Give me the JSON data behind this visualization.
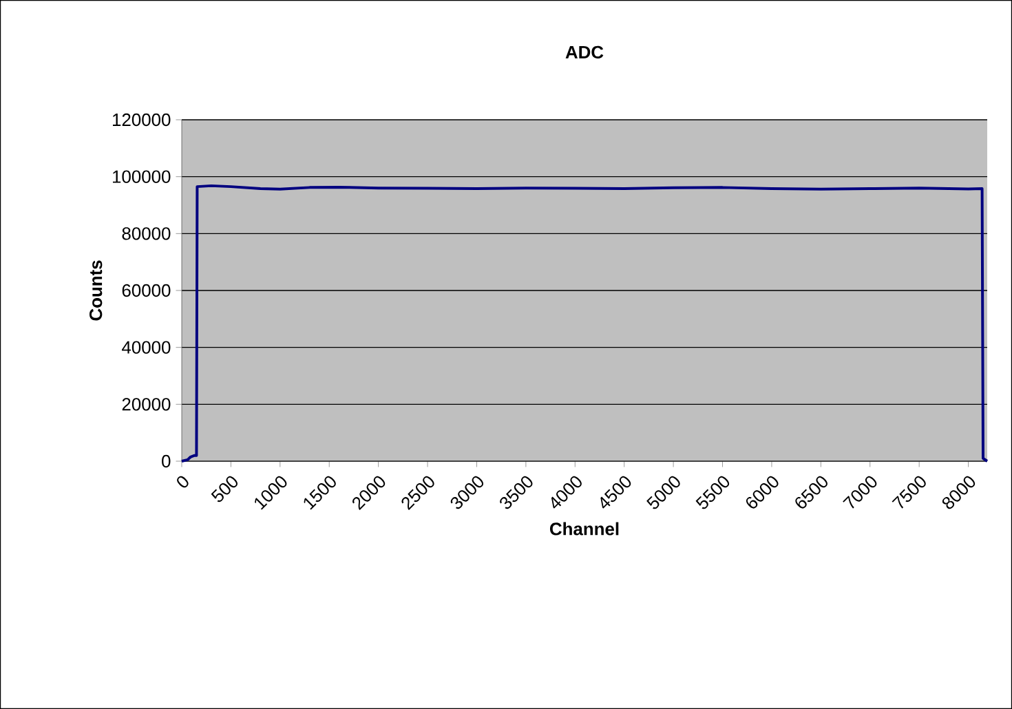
{
  "chart_data": {
    "type": "line",
    "title": "ADC",
    "xlabel": "Channel",
    "ylabel": "Counts",
    "xlim": [
      0,
      8192
    ],
    "xticks": [
      0,
      500,
      1000,
      1500,
      2000,
      2500,
      3000,
      3500,
      4000,
      4500,
      5000,
      5500,
      6000,
      6500,
      7000,
      7500,
      8000
    ],
    "ylim": [
      0,
      120000
    ],
    "yticks": [
      0,
      20000,
      40000,
      60000,
      80000,
      100000,
      120000
    ],
    "grid": "y",
    "marker": "none",
    "line_style": "solid",
    "series": [
      {
        "color": "#000080",
        "x": [
          0,
          60,
          90,
          130,
          150,
          157,
          300,
          500,
          800,
          1000,
          1300,
          1600,
          2000,
          2500,
          3000,
          3500,
          4000,
          4500,
          5000,
          5500,
          6000,
          6500,
          7000,
          7500,
          8000,
          8140,
          8150,
          8192
        ],
        "values": [
          0,
          500,
          1500,
          2000,
          2000,
          96500,
          96800,
          96500,
          95800,
          95600,
          96200,
          96300,
          96000,
          95900,
          95800,
          96000,
          95900,
          95800,
          96100,
          96200,
          95800,
          95600,
          95800,
          96000,
          95700,
          95800,
          1000,
          0
        ]
      }
    ]
  }
}
